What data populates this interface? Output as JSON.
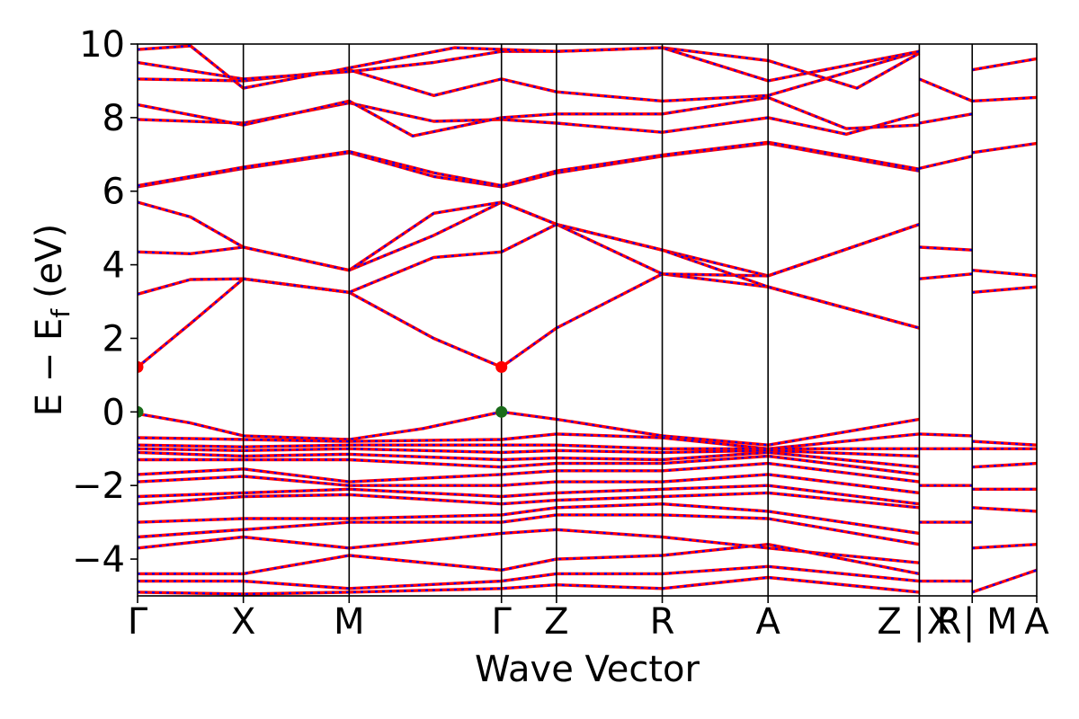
{
  "chart_data": {
    "type": "line",
    "title": "",
    "xlabel": "Wave Vector",
    "ylabel": "E − E",
    "ylabel_subscript": "f",
    "ylabel_unit": "(eV)",
    "ylim": [
      -5,
      10
    ],
    "yticks": [
      -4,
      -2,
      0,
      2,
      4,
      6,
      8,
      10
    ],
    "ytick_labels": [
      "−4",
      "−2",
      "0",
      "2",
      "4",
      "6",
      "8",
      "10"
    ],
    "kpath": {
      "x_range": [
        0,
        8.5
      ],
      "ticks": [
        {
          "label": "Γ",
          "x": 0.0
        },
        {
          "label": "X",
          "x": 1.0
        },
        {
          "label": "M",
          "x": 2.0
        },
        {
          "label": "Γ",
          "x": 3.44
        },
        {
          "label": "Z",
          "x": 3.96
        },
        {
          "label": "R",
          "x": 4.96
        },
        {
          "label": "A",
          "x": 5.96
        },
        {
          "label": "Z | R",
          "x": 7.39
        },
        {
          "label": "X | M",
          "x": 7.89
        },
        {
          "label": "A",
          "x": 8.5
        }
      ]
    },
    "series_styles": {
      "spin_up_color": "#ff0000",
      "spin_down_color": "#0000ff"
    },
    "markers": [
      {
        "x": 0.0,
        "y": 1.22,
        "color": "#ff0000"
      },
      {
        "x": 3.44,
        "y": 1.22,
        "color": "#ff0000"
      },
      {
        "x": 0.0,
        "y": 0.0,
        "color": "#1a6b1a"
      },
      {
        "x": 3.44,
        "y": 0.0,
        "color": "#1a6b1a"
      }
    ],
    "bands": [
      [
        [
          0,
          -0.05
        ],
        [
          0.5,
          -0.3
        ],
        [
          1,
          -0.65
        ],
        [
          2,
          -0.75
        ],
        [
          2.7,
          -0.45
        ],
        [
          3.44,
          0.0
        ],
        [
          3.96,
          -0.2
        ],
        [
          4.96,
          -0.65
        ],
        [
          5.96,
          -0.9
        ],
        [
          7.39,
          -0.2
        ]
      ],
      [
        [
          0,
          -0.7
        ],
        [
          1,
          -0.75
        ],
        [
          2,
          -0.8
        ],
        [
          3.44,
          -0.75
        ],
        [
          3.96,
          -0.6
        ],
        [
          4.96,
          -0.7
        ],
        [
          5.96,
          -1.0
        ],
        [
          7.39,
          -0.6
        ]
      ],
      [
        [
          0,
          -0.9
        ],
        [
          1,
          -0.95
        ],
        [
          2,
          -0.9
        ],
        [
          3.44,
          -0.9
        ],
        [
          3.96,
          -0.9
        ],
        [
          4.96,
          -1.0
        ],
        [
          5.96,
          -1.0
        ],
        [
          7.39,
          -1.0
        ]
      ],
      [
        [
          0,
          -1.0
        ],
        [
          1,
          -1.05
        ],
        [
          2,
          -1.0
        ],
        [
          3.44,
          -1.1
        ],
        [
          3.96,
          -1.05
        ],
        [
          4.96,
          -1.1
        ],
        [
          5.96,
          -1.05
        ],
        [
          7.39,
          -1.2
        ]
      ],
      [
        [
          0,
          -1.1
        ],
        [
          1,
          -1.2
        ],
        [
          2,
          -1.15
        ],
        [
          3.44,
          -1.3
        ],
        [
          3.96,
          -1.25
        ],
        [
          4.96,
          -1.3
        ],
        [
          5.96,
          -1.1
        ],
        [
          7.39,
          -1.5
        ]
      ],
      [
        [
          0,
          -1.3
        ],
        [
          1,
          -1.3
        ],
        [
          2,
          -1.3
        ],
        [
          3.44,
          -1.5
        ],
        [
          3.96,
          -1.4
        ],
        [
          4.96,
          -1.4
        ],
        [
          5.96,
          -1.2
        ],
        [
          7.39,
          -1.7
        ]
      ],
      [
        [
          0,
          -1.7
        ],
        [
          1,
          -1.55
        ],
        [
          2,
          -1.9
        ],
        [
          3.44,
          -1.7
        ],
        [
          3.96,
          -1.6
        ],
        [
          4.96,
          -1.6
        ],
        [
          5.96,
          -1.4
        ],
        [
          7.39,
          -1.9
        ]
      ],
      [
        [
          0,
          -1.9
        ],
        [
          1,
          -1.75
        ],
        [
          2,
          -2.0
        ],
        [
          3.44,
          -2.0
        ],
        [
          3.96,
          -1.9
        ],
        [
          4.96,
          -1.9
        ],
        [
          5.96,
          -1.7
        ],
        [
          7.39,
          -2.2
        ]
      ],
      [
        [
          0,
          -2.3
        ],
        [
          1,
          -2.2
        ],
        [
          2,
          -2.1
        ],
        [
          3.44,
          -2.3
        ],
        [
          3.96,
          -2.2
        ],
        [
          4.96,
          -2.1
        ],
        [
          5.96,
          -2.0
        ],
        [
          7.39,
          -2.5
        ]
      ],
      [
        [
          0,
          -2.5
        ],
        [
          1,
          -2.3
        ],
        [
          2,
          -2.25
        ],
        [
          3.44,
          -2.5
        ],
        [
          3.96,
          -2.4
        ],
        [
          4.96,
          -2.3
        ],
        [
          5.96,
          -2.2
        ],
        [
          7.39,
          -2.6
        ]
      ],
      [
        [
          0,
          -3.0
        ],
        [
          1,
          -2.9
        ],
        [
          2,
          -2.9
        ],
        [
          3.44,
          -2.8
        ],
        [
          3.96,
          -2.6
        ],
        [
          4.96,
          -2.5
        ],
        [
          5.96,
          -2.7
        ],
        [
          7.39,
          -3.3
        ]
      ],
      [
        [
          0,
          -3.4
        ],
        [
          1,
          -3.2
        ],
        [
          2,
          -3.0
        ],
        [
          3.44,
          -3.0
        ],
        [
          3.96,
          -2.8
        ],
        [
          4.96,
          -2.8
        ],
        [
          5.96,
          -2.9
        ],
        [
          7.39,
          -3.6
        ]
      ],
      [
        [
          0,
          -3.7
        ],
        [
          1,
          -3.4
        ],
        [
          2,
          -3.7
        ],
        [
          3.44,
          -3.3
        ],
        [
          3.96,
          -3.2
        ],
        [
          4.96,
          -3.4
        ],
        [
          5.96,
          -3.7
        ],
        [
          7.39,
          -4.1
        ]
      ],
      [
        [
          0,
          -4.4
        ],
        [
          1,
          -4.4
        ],
        [
          2,
          -3.9
        ],
        [
          3.44,
          -4.3
        ],
        [
          3.96,
          -4.0
        ],
        [
          4.96,
          -3.9
        ],
        [
          5.96,
          -3.6
        ],
        [
          7.39,
          -4.4
        ]
      ],
      [
        [
          0,
          -4.6
        ],
        [
          1,
          -4.6
        ],
        [
          2,
          -4.8
        ],
        [
          3.44,
          -4.6
        ],
        [
          3.96,
          -4.4
        ],
        [
          4.96,
          -4.4
        ],
        [
          5.96,
          -4.2
        ],
        [
          7.39,
          -4.6
        ]
      ],
      [
        [
          0,
          -4.9
        ],
        [
          1,
          -4.95
        ],
        [
          2,
          -4.9
        ],
        [
          3.44,
          -4.8
        ],
        [
          3.96,
          -4.7
        ],
        [
          4.96,
          -4.8
        ],
        [
          5.96,
          -4.5
        ],
        [
          7.39,
          -4.9
        ]
      ],
      [
        [
          0,
          1.22
        ],
        [
          0.5,
          2.4
        ],
        [
          1,
          3.62
        ],
        [
          2,
          3.25
        ],
        [
          2.8,
          2.0
        ],
        [
          3.44,
          1.22
        ],
        [
          3.96,
          2.28
        ],
        [
          4.96,
          3.75
        ],
        [
          5.96,
          3.4
        ],
        [
          7.39,
          2.28
        ]
      ],
      [
        [
          0,
          3.2
        ],
        [
          0.5,
          3.6
        ],
        [
          1,
          3.62
        ],
        [
          2,
          3.25
        ],
        [
          2.8,
          4.2
        ],
        [
          3.44,
          4.35
        ],
        [
          3.96,
          5.1
        ],
        [
          4.96,
          4.4
        ],
        [
          5.96,
          3.7
        ],
        [
          7.39,
          5.1
        ]
      ],
      [
        [
          0,
          4.35
        ],
        [
          0.5,
          4.3
        ],
        [
          1,
          4.48
        ],
        [
          2,
          3.85
        ],
        [
          2.8,
          4.8
        ],
        [
          3.44,
          5.7
        ],
        [
          3.96,
          5.1
        ],
        [
          4.96,
          3.75
        ],
        [
          5.96,
          3.7
        ],
        [
          7.39,
          5.1
        ]
      ],
      [
        [
          0,
          5.7
        ],
        [
          0.5,
          5.3
        ],
        [
          1,
          4.48
        ],
        [
          2,
          3.85
        ],
        [
          2.8,
          5.4
        ],
        [
          3.44,
          5.7
        ],
        [
          3.96,
          5.1
        ],
        [
          4.96,
          4.4
        ],
        [
          5.96,
          3.4
        ],
        [
          7.39,
          2.28
        ]
      ],
      [
        [
          0,
          6.12
        ],
        [
          1,
          6.62
        ],
        [
          2,
          7.05
        ],
        [
          2.8,
          6.4
        ],
        [
          3.44,
          6.12
        ],
        [
          3.96,
          6.5
        ],
        [
          4.96,
          6.95
        ],
        [
          5.96,
          7.3
        ],
        [
          7.39,
          6.55
        ]
      ],
      [
        [
          0,
          6.15
        ],
        [
          1,
          6.65
        ],
        [
          2,
          7.08
        ],
        [
          2.8,
          6.5
        ],
        [
          3.44,
          6.15
        ],
        [
          3.96,
          6.55
        ],
        [
          4.96,
          6.98
        ],
        [
          5.96,
          7.33
        ],
        [
          7.39,
          6.6
        ]
      ],
      [
        [
          0,
          7.95
        ],
        [
          1,
          7.85
        ],
        [
          2,
          8.4
        ],
        [
          2.8,
          7.9
        ],
        [
          3.44,
          7.95
        ],
        [
          3.96,
          7.85
        ],
        [
          4.96,
          7.6
        ],
        [
          5.96,
          8.0
        ],
        [
          6.7,
          7.55
        ],
        [
          7.39,
          8.1
        ]
      ],
      [
        [
          0,
          8.35
        ],
        [
          1,
          7.8
        ],
        [
          2,
          8.45
        ],
        [
          2.6,
          7.5
        ],
        [
          3.44,
          8.0
        ],
        [
          3.96,
          8.1
        ],
        [
          4.96,
          8.1
        ],
        [
          5.96,
          8.55
        ],
        [
          6.7,
          7.7
        ],
        [
          7.39,
          7.8
        ]
      ],
      [
        [
          0,
          9.05
        ],
        [
          1,
          9.0
        ],
        [
          2,
          9.3
        ],
        [
          2.8,
          8.6
        ],
        [
          3.44,
          9.05
        ],
        [
          3.96,
          8.7
        ],
        [
          4.96,
          8.45
        ],
        [
          5.96,
          8.6
        ],
        [
          7.39,
          9.8
        ]
      ],
      [
        [
          0,
          9.5
        ],
        [
          1,
          9.05
        ],
        [
          2,
          9.25
        ],
        [
          2.8,
          9.5
        ],
        [
          3.44,
          9.8
        ],
        [
          3.96,
          9.8
        ],
        [
          4.96,
          9.9
        ],
        [
          5.96,
          9.55
        ],
        [
          6.8,
          8.8
        ],
        [
          7.39,
          9.75
        ]
      ],
      [
        [
          0,
          9.85
        ],
        [
          0.5,
          9.95
        ],
        [
          1,
          8.8
        ],
        [
          2,
          9.35
        ],
        [
          3.0,
          9.9
        ],
        [
          3.96,
          9.8
        ],
        [
          4.96,
          9.9
        ],
        [
          5.96,
          9.0
        ],
        [
          7.39,
          9.8
        ]
      ],
      [
        [
          7.39,
          -0.6
        ],
        [
          7.89,
          -0.65
        ]
      ],
      [
        [
          7.39,
          -1.0
        ],
        [
          7.89,
          -1.0
        ]
      ],
      [
        [
          7.39,
          -2.0
        ],
        [
          7.89,
          -2.0
        ]
      ],
      [
        [
          7.39,
          -3.0
        ],
        [
          7.89,
          -3.0
        ]
      ],
      [
        [
          7.39,
          -4.6
        ],
        [
          7.89,
          -4.6
        ]
      ],
      [
        [
          7.39,
          3.62
        ],
        [
          7.89,
          3.75
        ]
      ],
      [
        [
          7.39,
          4.48
        ],
        [
          7.89,
          4.4
        ]
      ],
      [
        [
          7.39,
          6.62
        ],
        [
          7.89,
          6.95
        ]
      ],
      [
        [
          7.39,
          7.85
        ],
        [
          7.89,
          8.1
        ]
      ],
      [
        [
          7.39,
          9.05
        ],
        [
          7.89,
          8.45
        ]
      ],
      [
        [
          7.89,
          -0.8
        ],
        [
          8.5,
          -0.9
        ]
      ],
      [
        [
          7.89,
          -1.0
        ],
        [
          8.5,
          -1.0
        ]
      ],
      [
        [
          7.89,
          -1.5
        ],
        [
          8.5,
          -1.4
        ]
      ],
      [
        [
          7.89,
          -2.1
        ],
        [
          8.5,
          -2.1
        ]
      ],
      [
        [
          7.89,
          -2.6
        ],
        [
          8.5,
          -2.7
        ]
      ],
      [
        [
          7.89,
          -3.7
        ],
        [
          8.5,
          -3.6
        ]
      ],
      [
        [
          7.89,
          -4.9
        ],
        [
          8.5,
          -4.3
        ]
      ],
      [
        [
          7.89,
          3.25
        ],
        [
          8.5,
          3.4
        ]
      ],
      [
        [
          7.89,
          3.85
        ],
        [
          8.5,
          3.7
        ]
      ],
      [
        [
          7.89,
          7.05
        ],
        [
          8.5,
          7.3
        ]
      ],
      [
        [
          7.89,
          8.45
        ],
        [
          8.5,
          8.55
        ]
      ],
      [
        [
          7.89,
          9.3
        ],
        [
          8.5,
          9.6
        ]
      ]
    ]
  }
}
